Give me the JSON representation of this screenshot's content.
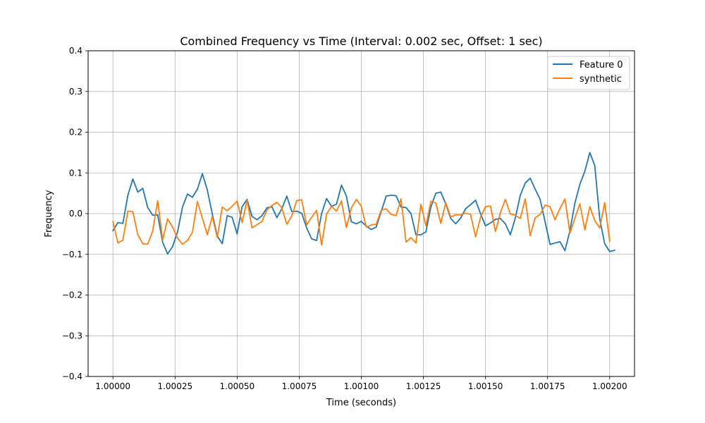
{
  "chart_data": {
    "type": "line",
    "title": "Combined Frequency vs Time (Interval: 0.002 sec, Offset: 1 sec)",
    "xlabel": "Time (seconds)",
    "ylabel": "Frequency",
    "xlim": [
      0.9999,
      1.0021
    ],
    "ylim": [
      -0.4,
      0.4
    ],
    "grid": true,
    "legend_position": "top-right",
    "x_ticks": [
      {
        "value": 1.0,
        "label": "1.00000"
      },
      {
        "value": 1.00025,
        "label": "1.00025"
      },
      {
        "value": 1.0005,
        "label": "1.00050"
      },
      {
        "value": 1.00075,
        "label": "1.00075"
      },
      {
        "value": 1.001,
        "label": "1.00100"
      },
      {
        "value": 1.00125,
        "label": "1.00125"
      },
      {
        "value": 1.0015,
        "label": "1.00150"
      },
      {
        "value": 1.00175,
        "label": "1.00175"
      },
      {
        "value": 1.002,
        "label": "1.00200"
      }
    ],
    "y_ticks": [
      {
        "value": 0.4,
        "label": "0.4"
      },
      {
        "value": 0.3,
        "label": "0.3"
      },
      {
        "value": 0.2,
        "label": "0.2"
      },
      {
        "value": 0.1,
        "label": "0.1"
      },
      {
        "value": 0.0,
        "label": "0.0"
      },
      {
        "value": -0.1,
        "label": "−0.1"
      },
      {
        "value": -0.2,
        "label": "−0.2"
      },
      {
        "value": -0.3,
        "label": "−0.3"
      },
      {
        "value": -0.4,
        "label": "−0.4"
      }
    ],
    "x_start": 1.0,
    "x_step": 2e-05,
    "series": [
      {
        "name": "Feature 0",
        "color": "#1f77b4",
        "values": [
          -0.042,
          -0.022,
          -0.024,
          0.045,
          0.085,
          0.053,
          0.062,
          0.015,
          -0.004,
          -0.003,
          -0.07,
          -0.099,
          -0.081,
          -0.045,
          0.016,
          0.048,
          0.04,
          0.06,
          0.098,
          0.058,
          -0.001,
          -0.055,
          -0.074,
          -0.005,
          -0.009,
          -0.05,
          0.017,
          0.035,
          -0.007,
          -0.015,
          -0.005,
          0.014,
          0.017,
          -0.01,
          0.012,
          0.043,
          0.005,
          0.006,
          0.001,
          -0.035,
          -0.062,
          -0.066,
          0.0,
          0.037,
          0.018,
          0.023,
          0.07,
          0.043,
          -0.02,
          -0.025,
          -0.019,
          -0.031,
          -0.039,
          -0.033,
          0.005,
          0.043,
          0.045,
          0.044,
          0.016,
          0.015,
          0.0,
          -0.052,
          -0.052,
          -0.045,
          0.016,
          0.05,
          0.053,
          0.024,
          -0.012,
          -0.025,
          -0.011,
          0.012,
          0.022,
          0.033,
          0.0,
          -0.03,
          -0.023,
          -0.014,
          -0.012,
          -0.025,
          -0.052,
          -0.011,
          0.045,
          0.075,
          0.087,
          0.06,
          0.035,
          -0.02,
          -0.076,
          -0.072,
          -0.069,
          -0.091,
          -0.042,
          0.026,
          0.072,
          0.104,
          0.15,
          0.118,
          -0.013,
          -0.074,
          -0.093,
          -0.09
        ]
      },
      {
        "name": "synthetic",
        "color": "#ff7f0e",
        "values": [
          -0.02,
          -0.072,
          -0.065,
          0.006,
          0.005,
          -0.052,
          -0.074,
          -0.075,
          -0.043,
          0.032,
          -0.065,
          -0.013,
          -0.033,
          -0.06,
          -0.075,
          -0.066,
          -0.046,
          0.03,
          -0.011,
          -0.052,
          -0.007,
          -0.059,
          0.016,
          0.007,
          0.018,
          0.031,
          -0.022,
          0.033,
          -0.035,
          -0.027,
          -0.019,
          0.009,
          0.02,
          0.028,
          0.014,
          -0.026,
          -0.006,
          0.032,
          0.034,
          -0.028,
          -0.009,
          0.008,
          -0.077,
          -0.001,
          0.018,
          0.006,
          0.031,
          -0.034,
          0.014,
          0.035,
          0.018,
          -0.033,
          -0.028,
          -0.026,
          0.008,
          0.012,
          -0.002,
          -0.005,
          0.036,
          -0.07,
          -0.059,
          -0.072,
          0.023,
          -0.03,
          0.03,
          0.026,
          -0.024,
          0.027,
          -0.008,
          -0.003,
          -0.003,
          0.001,
          -0.002,
          -0.057,
          -0.009,
          0.017,
          0.019,
          -0.044,
          0.002,
          0.035,
          -0.001,
          -0.004,
          -0.012,
          0.036,
          -0.054,
          -0.01,
          -0.002,
          0.021,
          0.017,
          -0.015,
          0.013,
          0.036,
          -0.048,
          -0.011,
          0.024,
          -0.04,
          0.017,
          -0.017,
          -0.035,
          0.027,
          -0.068
        ]
      }
    ]
  }
}
